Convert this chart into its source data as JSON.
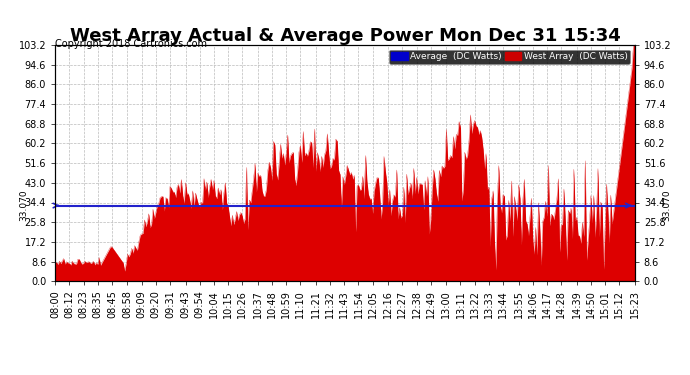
{
  "title": "West Array Actual & Average Power Mon Dec 31 15:34",
  "copyright": "Copyright 2018 Cartronics.com",
  "average_value": 33.07,
  "average_label": "33.070",
  "y_max": 103.2,
  "y_min": 0.0,
  "y_ticks": [
    0.0,
    8.6,
    17.2,
    25.8,
    34.4,
    43.0,
    51.6,
    60.2,
    68.8,
    77.4,
    86.0,
    94.6,
    103.2
  ],
  "fill_color": "#dd0000",
  "avg_line_color": "#2222cc",
  "bg_color": "#ffffff",
  "plot_bg_color": "#ffffff",
  "grid_color": "#bbbbbb",
  "title_fontsize": 13,
  "copyright_fontsize": 7,
  "tick_fontsize": 7,
  "x_labels": [
    "08:00",
    "08:12",
    "08:23",
    "08:35",
    "08:45",
    "08:58",
    "09:09",
    "09:20",
    "09:31",
    "09:43",
    "09:54",
    "10:04",
    "10:15",
    "10:26",
    "10:37",
    "10:48",
    "10:59",
    "11:10",
    "11:21",
    "11:32",
    "11:43",
    "11:54",
    "12:05",
    "12:16",
    "12:27",
    "12:38",
    "12:49",
    "13:00",
    "13:11",
    "13:22",
    "13:33",
    "13:44",
    "13:55",
    "14:06",
    "14:17",
    "14:28",
    "14:39",
    "14:50",
    "15:01",
    "15:12",
    "15:23"
  ],
  "legend_labels": [
    "Average  (DC Watts)",
    "West Array  (DC Watts)"
  ],
  "legend_colors": [
    "#0000cc",
    "#cc0000"
  ]
}
